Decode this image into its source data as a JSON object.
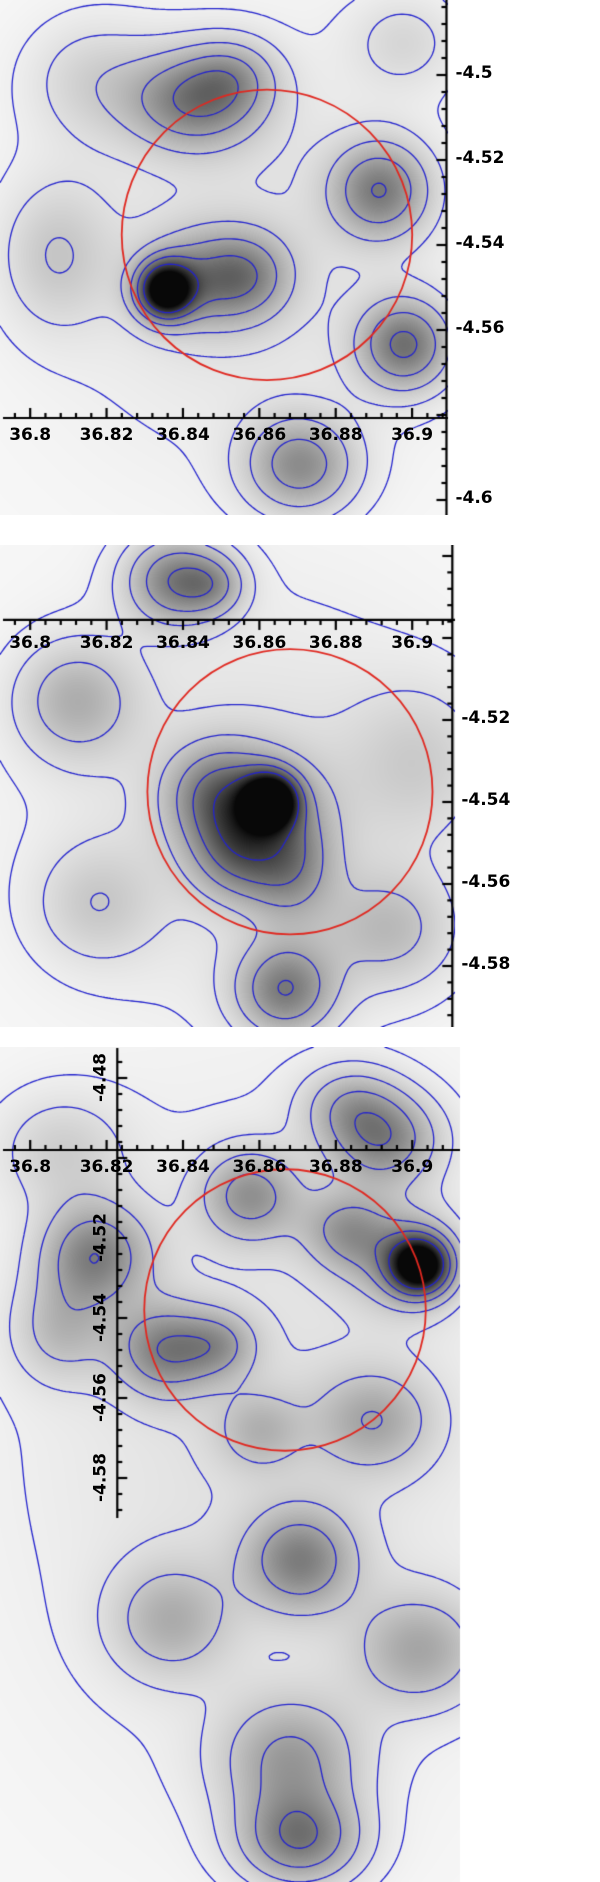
{
  "figure": {
    "background": "#ffffff",
    "n_panels": 3
  },
  "colors": {
    "contour": "#2323cd",
    "circle": "#e02820",
    "axis": "#000000",
    "label": "#000000",
    "map_low": "#f8f8f8",
    "map_high": "#080808"
  },
  "chart_data": [
    {
      "type": "heatmap",
      "title": "",
      "xlabel": "",
      "ylabel": "",
      "x_ticks": {
        "values": [
          36.8,
          36.82,
          36.84,
          36.86,
          36.88,
          36.9
        ],
        "labels": [
          "36.8",
          "36.82",
          "36.84",
          "36.86",
          "36.88",
          "36.9"
        ]
      },
      "y_ticks": {
        "values": [
          -4.5,
          -4.52,
          -4.54,
          -4.56,
          -4.6
        ],
        "labels": [
          "-4.5",
          "-4.52",
          "-4.54",
          "-4.56",
          "-4.6"
        ]
      },
      "view": {
        "x_min": 36.7921,
        "x_max": 36.9094,
        "y_top": -4.48235,
        "y_bottom": -4.60353
      },
      "axes": {
        "x_axis": {
          "y": -4.5807,
          "tick_dir": -1
        },
        "y_axis": {
          "x": 36.909,
          "tick_dir": -1,
          "label_side": "right"
        }
      },
      "circle": {
        "x": 36.862,
        "y": -4.5376,
        "r": 0.036
      },
      "contour_levels": [
        0.06,
        0.135,
        0.25,
        0.4,
        0.57,
        0.78
      ],
      "density_peaks": [
        {
          "x": 36.856,
          "y": -4.542,
          "sx": 0.04,
          "sy": 0.038,
          "a": 0.13
        },
        {
          "x": 36.8353,
          "y": -4.5506,
          "sx": 0.005,
          "sy": 0.0046,
          "a": 1.0
        },
        {
          "x": 36.846,
          "y": -4.548,
          "sx": 0.011,
          "sy": 0.008,
          "a": 0.4
        },
        {
          "x": 36.8575,
          "y": -4.547,
          "sx": 0.008,
          "sy": 0.007,
          "a": 0.26
        },
        {
          "x": 36.8432,
          "y": -4.5059,
          "sx": 0.012,
          "sy": 0.008,
          "a": 0.5
        },
        {
          "x": 36.853,
          "y": -4.5,
          "sx": 0.008,
          "sy": 0.006,
          "a": 0.22
        },
        {
          "x": 36.8916,
          "y": -4.527,
          "sx": 0.009,
          "sy": 0.008,
          "a": 0.5
        },
        {
          "x": 36.898,
          "y": -4.5635,
          "sx": 0.0085,
          "sy": 0.0075,
          "a": 0.55
        },
        {
          "x": 36.8706,
          "y": -4.5918,
          "sx": 0.01,
          "sy": 0.008,
          "a": 0.45
        },
        {
          "x": 36.8065,
          "y": -4.5424,
          "sx": 0.01,
          "sy": 0.012,
          "a": 0.2
        },
        {
          "x": 36.816,
          "y": -4.501,
          "sx": 0.012,
          "sy": 0.01,
          "a": 0.16
        },
        {
          "x": 36.898,
          "y": -4.492,
          "sx": 0.01,
          "sy": 0.008,
          "a": 0.15
        }
      ]
    },
    {
      "type": "heatmap",
      "title": "",
      "xlabel": "",
      "ylabel": "",
      "x_ticks": {
        "values": [
          36.8,
          36.82,
          36.84,
          36.86,
          36.88,
          36.9
        ],
        "labels": [
          "36.8",
          "36.82",
          "36.84",
          "36.86",
          "36.88",
          "36.9"
        ]
      },
      "y_ticks": {
        "values": [
          -4.52,
          -4.54,
          -4.56,
          -4.58
        ],
        "labels": [
          "-4.52",
          "-4.54",
          "-4.56",
          "-4.58"
        ]
      },
      "view": {
        "x_min": 36.7921,
        "x_max": 36.9112,
        "y_top": -4.47732,
        "y_bottom": -4.59488
      },
      "axes": {
        "x_axis": {
          "y": -4.4956,
          "tick_dir": 1
        },
        "y_axis": {
          "x": 36.9105,
          "tick_dir": -1,
          "label_side": "right"
        }
      },
      "circle": {
        "x": 36.868,
        "y": -4.5375,
        "r": 0.036
      },
      "contour_levels": [
        0.06,
        0.135,
        0.25,
        0.4,
        0.57,
        0.78
      ],
      "density_peaks": [
        {
          "x": 36.858,
          "y": -4.541,
          "sx": 0.042,
          "sy": 0.04,
          "a": 0.14
        },
        {
          "x": 36.8628,
          "y": -4.5395,
          "sx": 0.0048,
          "sy": 0.0044,
          "a": 1.0
        },
        {
          "x": 36.858,
          "y": -4.543,
          "sx": 0.012,
          "sy": 0.01,
          "a": 0.45
        },
        {
          "x": 36.868,
          "y": -4.5566,
          "sx": 0.008,
          "sy": 0.009,
          "a": 0.33
        },
        {
          "x": 36.848,
          "y": -4.537,
          "sx": 0.009,
          "sy": 0.008,
          "a": 0.28
        },
        {
          "x": 36.8536,
          "y": -4.553,
          "sx": 0.008,
          "sy": 0.008,
          "a": 0.28
        },
        {
          "x": 36.838,
          "y": -4.4859,
          "sx": 0.009,
          "sy": 0.0075,
          "a": 0.5
        },
        {
          "x": 36.848,
          "y": -4.487,
          "sx": 0.006,
          "sy": 0.005,
          "a": 0.24
        },
        {
          "x": 36.8117,
          "y": -4.5151,
          "sx": 0.011,
          "sy": 0.01,
          "a": 0.3
        },
        {
          "x": 36.8667,
          "y": -4.5858,
          "sx": 0.009,
          "sy": 0.008,
          "a": 0.5
        },
        {
          "x": 36.894,
          "y": -4.5712,
          "sx": 0.012,
          "sy": 0.01,
          "a": 0.24
        },
        {
          "x": 36.902,
          "y": -4.5298,
          "sx": 0.013,
          "sy": 0.013,
          "a": 0.16
        },
        {
          "x": 36.817,
          "y": -4.565,
          "sx": 0.011,
          "sy": 0.01,
          "a": 0.18
        }
      ]
    },
    {
      "type": "heatmap",
      "title": "",
      "xlabel": "",
      "ylabel": "",
      "x_ticks": {
        "values": [
          36.8,
          36.82,
          36.84,
          36.86,
          36.88,
          36.9
        ],
        "labels": [
          "36.8",
          "36.82",
          "36.84",
          "36.86",
          "36.88",
          "36.9"
        ]
      },
      "y_ticks": {
        "values": [
          -4.48,
          -4.52,
          -4.54,
          -4.56,
          -4.58
        ],
        "labels": [
          "-4.48",
          "-4.52",
          "-4.54",
          "-4.56",
          "-4.58"
        ]
      },
      "view": {
        "x_min": 36.7921,
        "x_max": 36.9125,
        "y_top": -4.47225,
        "y_bottom": -4.681
      },
      "axes": {
        "x_axis": {
          "y": -4.498,
          "tick_dir": -1
        },
        "y_axis": {
          "x": 36.8228,
          "tick_dir": 1,
          "label_side": "left-rotated",
          "y_from": -4.4725,
          "y_to": -4.59
        }
      },
      "circle": {
        "x": 36.8667,
        "y": -4.538,
        "r": 0.036
      },
      "contour_levels": [
        0.06,
        0.135,
        0.25,
        0.4,
        0.57,
        0.78
      ],
      "density_peaks": [
        {
          "x": 36.86,
          "y": -4.57,
          "sx": 0.05,
          "sy": 0.065,
          "a": 0.13
        },
        {
          "x": 36.902,
          "y": -4.5268,
          "sx": 0.0055,
          "sy": 0.005,
          "a": 0.95
        },
        {
          "x": 36.898,
          "y": -4.525,
          "sx": 0.01,
          "sy": 0.009,
          "a": 0.35
        },
        {
          "x": 36.8928,
          "y": -4.4955,
          "sx": 0.01,
          "sy": 0.008,
          "a": 0.45
        },
        {
          "x": 36.8837,
          "y": -4.4868,
          "sx": 0.009,
          "sy": 0.007,
          "a": 0.28
        },
        {
          "x": 36.8575,
          "y": -4.5093,
          "sx": 0.009,
          "sy": 0.008,
          "a": 0.4
        },
        {
          "x": 36.817,
          "y": -4.5243,
          "sx": 0.01,
          "sy": 0.009,
          "a": 0.48
        },
        {
          "x": 36.808,
          "y": -4.543,
          "sx": 0.009,
          "sy": 0.009,
          "a": 0.24
        },
        {
          "x": 36.8353,
          "y": -4.548,
          "sx": 0.009,
          "sy": 0.008,
          "a": 0.45
        },
        {
          "x": 36.8497,
          "y": -4.5467,
          "sx": 0.007,
          "sy": 0.006,
          "a": 0.28
        },
        {
          "x": 36.8824,
          "y": -4.518,
          "sx": 0.008,
          "sy": 0.007,
          "a": 0.33
        },
        {
          "x": 36.89,
          "y": -4.5655,
          "sx": 0.011,
          "sy": 0.009,
          "a": 0.3
        },
        {
          "x": 36.86,
          "y": -4.568,
          "sx": 0.008,
          "sy": 0.007,
          "a": 0.22
        },
        {
          "x": 36.8706,
          "y": -4.6005,
          "sx": 0.01,
          "sy": 0.009,
          "a": 0.45
        },
        {
          "x": 36.8366,
          "y": -4.6155,
          "sx": 0.011,
          "sy": 0.01,
          "a": 0.28
        },
        {
          "x": 36.902,
          "y": -4.623,
          "sx": 0.012,
          "sy": 0.01,
          "a": 0.33
        },
        {
          "x": 36.868,
          "y": -4.6505,
          "sx": 0.013,
          "sy": 0.011,
          "a": 0.38
        },
        {
          "x": 36.8706,
          "y": -4.6705,
          "sx": 0.011,
          "sy": 0.008,
          "a": 0.5
        },
        {
          "x": 36.808,
          "y": -4.498,
          "sx": 0.012,
          "sy": 0.01,
          "a": 0.18
        }
      ]
    }
  ]
}
